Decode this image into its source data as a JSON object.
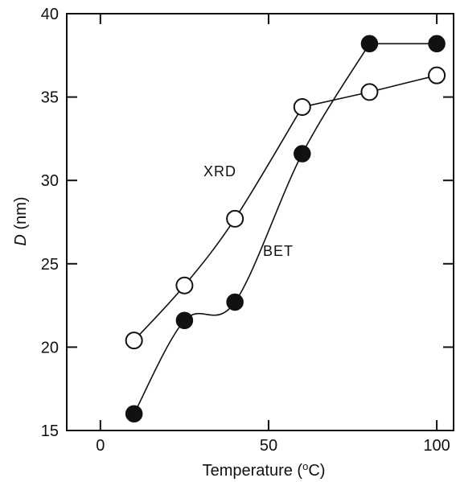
{
  "chart_data": {
    "type": "line",
    "title": "",
    "xlabel": "Temperature (°C)",
    "ylabel": "D (nm)",
    "xlim": [
      -10,
      105
    ],
    "ylim": [
      15,
      40
    ],
    "xticks": [
      0,
      50,
      100
    ],
    "yticks": [
      15,
      20,
      25,
      30,
      35,
      40
    ],
    "grid": false,
    "series": [
      {
        "name": "XRD",
        "marker": "open-circle",
        "x": [
          10,
          25,
          40,
          60,
          80,
          100
        ],
        "y": [
          20.4,
          23.7,
          27.7,
          34.4,
          35.3,
          36.3
        ]
      },
      {
        "name": "BET",
        "marker": "filled-circle",
        "x": [
          10,
          25,
          40,
          60,
          80,
          100
        ],
        "y": [
          16.0,
          21.6,
          22.7,
          31.6,
          38.2,
          38.2
        ]
      }
    ]
  }
}
